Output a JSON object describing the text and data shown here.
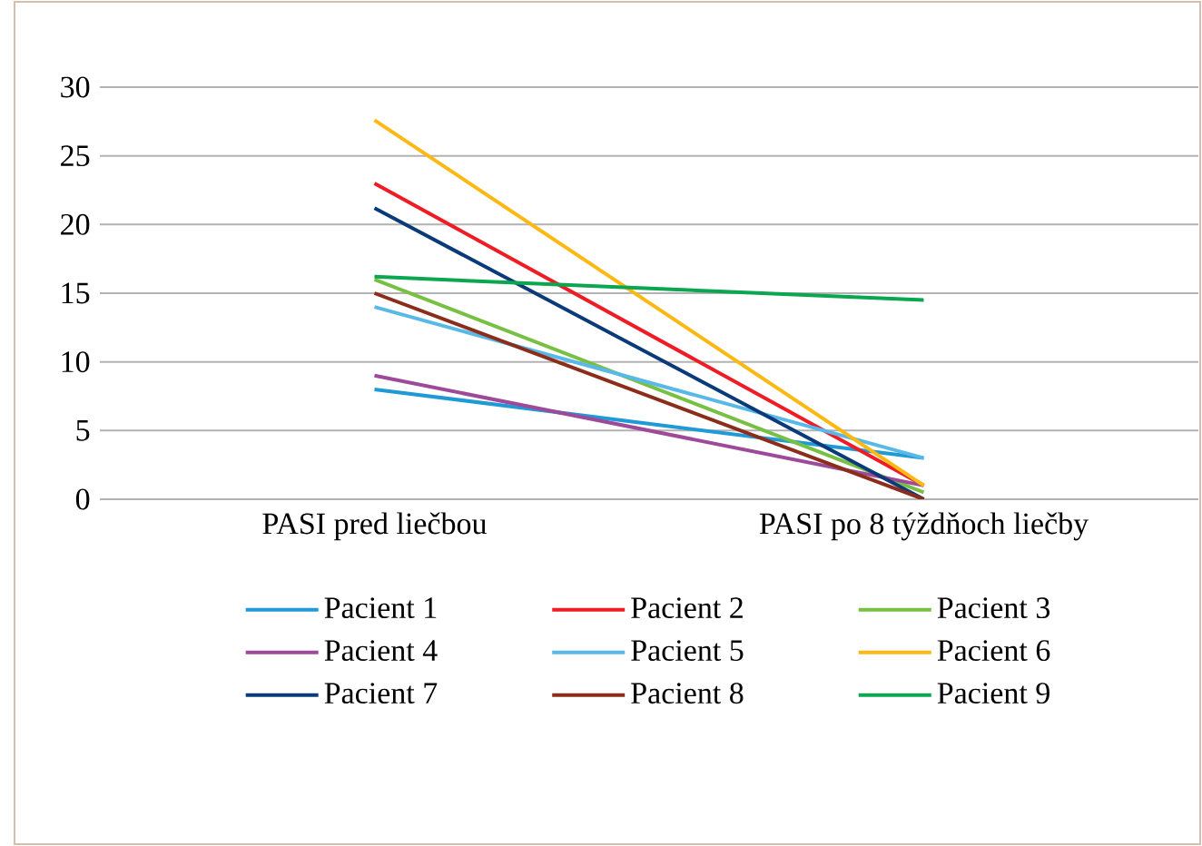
{
  "chart_data": {
    "type": "line",
    "categories": [
      "PASI pred liečbou",
      "PASI po 8 týždňoch liečby"
    ],
    "ylim": [
      0,
      30
    ],
    "yticks": [
      0,
      5,
      10,
      15,
      20,
      25,
      30
    ],
    "grid": "y",
    "legend": "bottom",
    "series": [
      {
        "name": "Pacient 1",
        "color": "#1f9ad6",
        "values": [
          8,
          3
        ]
      },
      {
        "name": "Pacient 2",
        "color": "#ee1c25",
        "values": [
          23,
          1
        ]
      },
      {
        "name": "Pacient 3",
        "color": "#77c043",
        "values": [
          16,
          0.5
        ]
      },
      {
        "name": "Pacient 4",
        "color": "#9e4a9a",
        "values": [
          9,
          1
        ]
      },
      {
        "name": "Pacient 5",
        "color": "#58b9e8",
        "values": [
          14,
          3
        ]
      },
      {
        "name": "Pacient 6",
        "color": "#fdb813",
        "values": [
          27.6,
          1
        ]
      },
      {
        "name": "Pacient 7",
        "color": "#0a3a7a",
        "values": [
          21.2,
          0
        ]
      },
      {
        "name": "Pacient 8",
        "color": "#8b2d1a",
        "values": [
          15,
          0
        ]
      },
      {
        "name": "Pacient 9",
        "color": "#0aa650",
        "values": [
          16.2,
          14.5
        ]
      }
    ]
  }
}
